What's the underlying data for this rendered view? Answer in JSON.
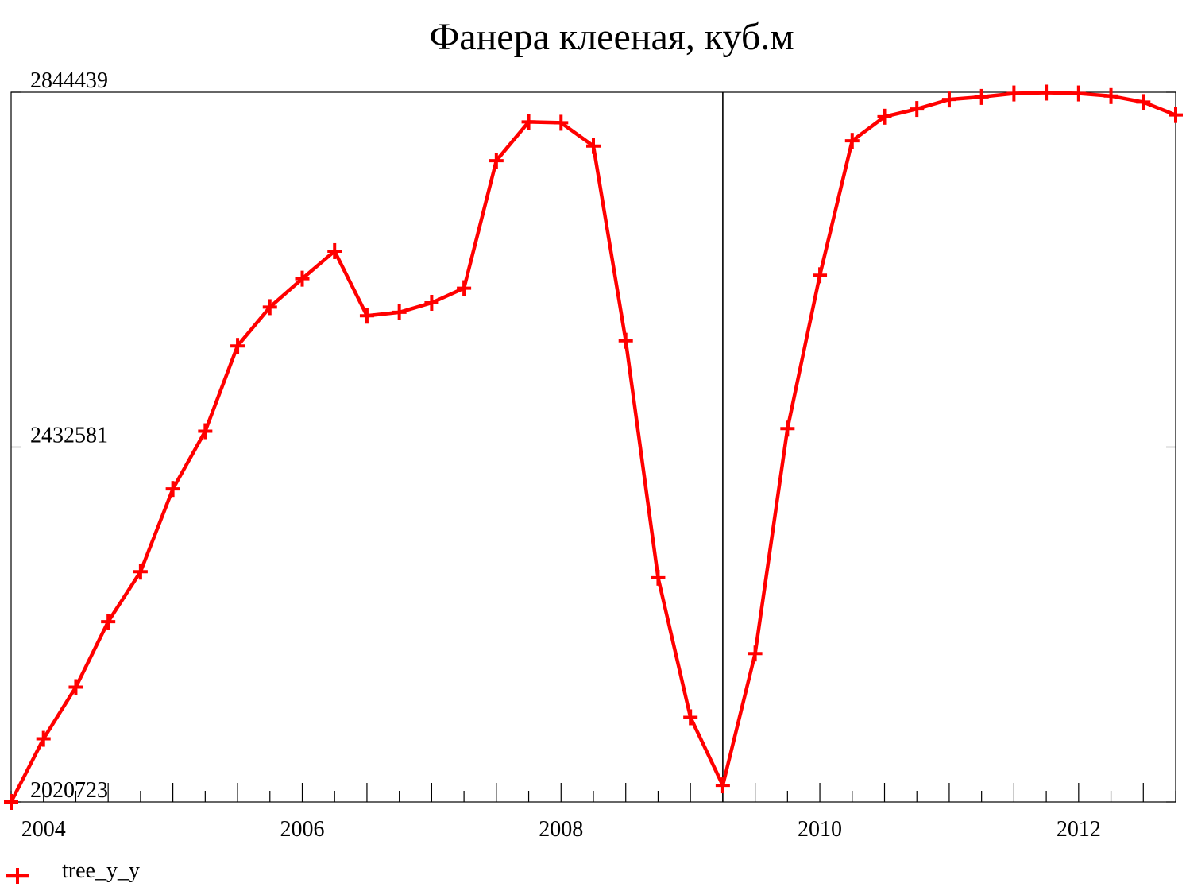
{
  "chart_data": {
    "type": "line",
    "title": "Фанера клееная, куб.м",
    "xlabel": "",
    "ylabel": "",
    "xlim": [
      2003.75,
      2012.75
    ],
    "ylim": [
      2020723,
      2844439
    ],
    "x_ticks": [
      2004,
      2006,
      2008,
      2010,
      2012
    ],
    "y_ticks": [
      2020723,
      2432581,
      2844439
    ],
    "x_tick_labels": [
      "2004",
      "2006",
      "2008",
      "2010",
      "2012"
    ],
    "y_tick_labels": [
      "2020723",
      "2432581",
      "2844439"
    ],
    "vline_x": 2009.25,
    "grid": false,
    "legend_position": "bottom-left",
    "colors": {
      "series": "#ff0000",
      "axis": "#000000"
    },
    "series": [
      {
        "name": "tree_y_y",
        "x": [
          2003.75,
          2004.0,
          2004.25,
          2004.5,
          2004.75,
          2005.0,
          2005.25,
          2005.5,
          2005.75,
          2006.0,
          2006.25,
          2006.5,
          2006.75,
          2007.0,
          2007.25,
          2007.5,
          2007.75,
          2008.0,
          2008.25,
          2008.5,
          2008.75,
          2009.0,
          2009.25,
          2009.5,
          2009.75,
          2010.0,
          2010.25,
          2010.5,
          2010.75,
          2011.0,
          2011.25,
          2011.5,
          2011.75,
          2012.0,
          2012.25,
          2012.5,
          2012.75
        ],
        "values": [
          2020723,
          2094000,
          2154000,
          2230000,
          2288000,
          2384000,
          2451000,
          2550000,
          2595000,
          2628000,
          2660000,
          2585000,
          2589000,
          2600000,
          2617000,
          2765000,
          2810000,
          2809000,
          2782000,
          2556000,
          2281000,
          2119000,
          2040000,
          2193000,
          2454000,
          2632000,
          2788000,
          2816000,
          2825000,
          2836000,
          2839000,
          2843000,
          2844000,
          2843000,
          2840000,
          2833000,
          2818000
        ]
      }
    ]
  }
}
